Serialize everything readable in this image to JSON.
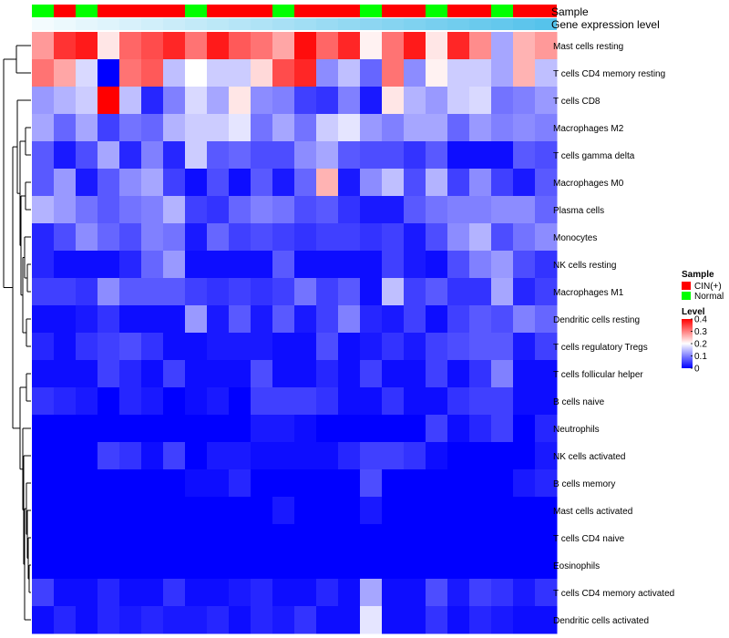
{
  "chart_data": {
    "type": "heatmap",
    "title": "",
    "rows": [
      "Mast cells resting",
      "T cells CD4 memory resting",
      "T cells CD8",
      "Macrophages M2",
      "T cells gamma delta",
      "Macrophages M0",
      "Plasma cells",
      "Monocytes",
      "NK cells resting",
      "Macrophages M1",
      "Dendritic cells resting",
      "T cells regulatory  Tregs",
      "T cells follicular helper",
      "B cells naive",
      "Neutrophils",
      "NK cells activated",
      "B cells memory",
      "Mast cells activated",
      "T cells CD4 naive",
      "Eosinophils",
      "T cells CD4 memory activated",
      "Dendritic cells activated"
    ],
    "columns": 24,
    "sample_annotation": [
      "Normal",
      "CIN(+)",
      "Normal",
      "CIN(+)",
      "CIN(+)",
      "CIN(+)",
      "CIN(+)",
      "Normal",
      "CIN(+)",
      "CIN(+)",
      "CIN(+)",
      "Normal",
      "CIN(+)",
      "CIN(+)",
      "CIN(+)",
      "Normal",
      "CIN(+)",
      "CIN(+)",
      "Normal",
      "CIN(+)",
      "CIN(+)",
      "Normal",
      "CIN(+)",
      "CIN(+)"
    ],
    "gene_expression_level": [
      0.02,
      0.04,
      0.06,
      0.08,
      0.1,
      0.12,
      0.14,
      0.16,
      0.18,
      0.2,
      0.22,
      0.24,
      0.26,
      0.28,
      0.3,
      0.32,
      0.34,
      0.36,
      0.38,
      0.4,
      0.42,
      0.44,
      0.46,
      0.48
    ],
    "values": [
      [
        0.28,
        0.36,
        0.38,
        0.22,
        0.32,
        0.34,
        0.37,
        0.31,
        0.38,
        0.33,
        0.31,
        0.27,
        0.39,
        0.32,
        0.37,
        0.21,
        0.31,
        0.38,
        0.22,
        0.37,
        0.29,
        0.13,
        0.26,
        0.28
      ],
      [
        0.31,
        0.27,
        0.17,
        0.0,
        0.31,
        0.33,
        0.15,
        0.2,
        0.16,
        0.16,
        0.23,
        0.34,
        0.37,
        0.11,
        0.15,
        0.08,
        0.31,
        0.11,
        0.21,
        0.16,
        0.16,
        0.13,
        0.26,
        0.15
      ],
      [
        0.12,
        0.14,
        0.16,
        0.4,
        0.15,
        0.03,
        0.1,
        0.17,
        0.13,
        0.22,
        0.11,
        0.1,
        0.05,
        0.04,
        0.1,
        0.02,
        0.22,
        0.14,
        0.12,
        0.16,
        0.17,
        0.09,
        0.1,
        0.12
      ],
      [
        0.13,
        0.08,
        0.13,
        0.05,
        0.09,
        0.08,
        0.14,
        0.16,
        0.16,
        0.18,
        0.09,
        0.13,
        0.09,
        0.16,
        0.18,
        0.12,
        0.1,
        0.13,
        0.13,
        0.08,
        0.12,
        0.1,
        0.11,
        0.1
      ],
      [
        0.07,
        0.02,
        0.06,
        0.13,
        0.03,
        0.1,
        0.03,
        0.16,
        0.07,
        0.08,
        0.06,
        0.06,
        0.11,
        0.13,
        0.07,
        0.06,
        0.06,
        0.04,
        0.07,
        0.01,
        0.01,
        0.01,
        0.07,
        0.06
      ],
      [
        0.07,
        0.12,
        0.02,
        0.07,
        0.11,
        0.13,
        0.05,
        0.01,
        0.06,
        0.01,
        0.07,
        0.02,
        0.08,
        0.26,
        0.02,
        0.11,
        0.15,
        0.06,
        0.14,
        0.05,
        0.11,
        0.05,
        0.02,
        0.07
      ],
      [
        0.14,
        0.12,
        0.09,
        0.07,
        0.09,
        0.1,
        0.14,
        0.05,
        0.04,
        0.08,
        0.1,
        0.09,
        0.06,
        0.07,
        0.04,
        0.02,
        0.02,
        0.07,
        0.09,
        0.1,
        0.1,
        0.11,
        0.11,
        0.08
      ],
      [
        0.03,
        0.06,
        0.11,
        0.08,
        0.06,
        0.1,
        0.09,
        0.02,
        0.08,
        0.05,
        0.06,
        0.05,
        0.04,
        0.05,
        0.05,
        0.04,
        0.05,
        0.02,
        0.06,
        0.11,
        0.14,
        0.06,
        0.09,
        0.11
      ],
      [
        0.03,
        0.01,
        0.01,
        0.01,
        0.03,
        0.08,
        0.12,
        0.01,
        0.01,
        0.01,
        0.01,
        0.07,
        0.01,
        0.01,
        0.01,
        0.01,
        0.05,
        0.02,
        0.01,
        0.06,
        0.1,
        0.12,
        0.06,
        0.04
      ],
      [
        0.05,
        0.05,
        0.04,
        0.11,
        0.07,
        0.07,
        0.07,
        0.05,
        0.04,
        0.05,
        0.04,
        0.05,
        0.09,
        0.05,
        0.07,
        0.01,
        0.15,
        0.05,
        0.07,
        0.04,
        0.04,
        0.13,
        0.03,
        0.05
      ],
      [
        0.01,
        0.01,
        0.02,
        0.04,
        0.01,
        0.01,
        0.01,
        0.12,
        0.02,
        0.07,
        0.02,
        0.07,
        0.02,
        0.05,
        0.1,
        0.03,
        0.02,
        0.05,
        0.01,
        0.05,
        0.07,
        0.06,
        0.1,
        0.08
      ],
      [
        0.03,
        0.01,
        0.04,
        0.05,
        0.06,
        0.04,
        0.01,
        0.01,
        0.02,
        0.02,
        0.02,
        0.01,
        0.01,
        0.06,
        0.01,
        0.02,
        0.04,
        0.02,
        0.05,
        0.06,
        0.07,
        0.07,
        0.02,
        0.05
      ],
      [
        0.01,
        0.01,
        0.01,
        0.05,
        0.03,
        0.01,
        0.05,
        0.01,
        0.01,
        0.01,
        0.06,
        0.01,
        0.01,
        0.03,
        0.01,
        0.05,
        0.01,
        0.01,
        0.05,
        0.01,
        0.04,
        0.1,
        0.01,
        0.01
      ],
      [
        0.04,
        0.03,
        0.02,
        0.0,
        0.03,
        0.02,
        0.0,
        0.01,
        0.02,
        0.0,
        0.05,
        0.05,
        0.05,
        0.04,
        0.01,
        0.01,
        0.04,
        0.01,
        0.01,
        0.04,
        0.05,
        0.05,
        0.01,
        0.01
      ],
      [
        0.0,
        0.0,
        0.0,
        0.0,
        0.0,
        0.0,
        0.0,
        0.0,
        0.0,
        0.0,
        0.02,
        0.02,
        0.01,
        0.0,
        0.0,
        0.0,
        0.0,
        0.0,
        0.05,
        0.01,
        0.03,
        0.05,
        0.0,
        0.03
      ],
      [
        0.0,
        0.0,
        0.0,
        0.05,
        0.04,
        0.01,
        0.05,
        0.0,
        0.02,
        0.02,
        0.01,
        0.01,
        0.01,
        0.01,
        0.03,
        0.05,
        0.05,
        0.04,
        0.01,
        0.0,
        0.0,
        0.0,
        0.0,
        0.02
      ],
      [
        0.0,
        0.0,
        0.0,
        0.0,
        0.0,
        0.0,
        0.0,
        0.01,
        0.01,
        0.03,
        0.0,
        0.0,
        0.0,
        0.0,
        0.0,
        0.06,
        0.0,
        0.0,
        0.0,
        0.0,
        0.0,
        0.0,
        0.02,
        0.03
      ],
      [
        0.0,
        0.0,
        0.0,
        0.0,
        0.0,
        0.0,
        0.0,
        0.0,
        0.0,
        0.0,
        0.0,
        0.02,
        0.0,
        0.0,
        0.0,
        0.02,
        0.0,
        0.0,
        0.0,
        0.0,
        0.0,
        0.0,
        0.0,
        0.0
      ],
      [
        0.0,
        0.0,
        0.0,
        0.0,
        0.0,
        0.0,
        0.0,
        0.0,
        0.0,
        0.0,
        0.0,
        0.0,
        0.0,
        0.0,
        0.0,
        0.0,
        0.0,
        0.0,
        0.0,
        0.0,
        0.0,
        0.0,
        0.0,
        0.0
      ],
      [
        0.0,
        0.0,
        0.0,
        0.0,
        0.0,
        0.0,
        0.0,
        0.0,
        0.0,
        0.0,
        0.0,
        0.0,
        0.0,
        0.0,
        0.0,
        0.0,
        0.0,
        0.0,
        0.0,
        0.0,
        0.0,
        0.0,
        0.0,
        0.0
      ],
      [
        0.05,
        0.01,
        0.01,
        0.03,
        0.01,
        0.01,
        0.04,
        0.01,
        0.01,
        0.02,
        0.03,
        0.01,
        0.01,
        0.03,
        0.01,
        0.13,
        0.01,
        0.01,
        0.06,
        0.02,
        0.05,
        0.04,
        0.02,
        0.04
      ],
      [
        0.01,
        0.03,
        0.01,
        0.03,
        0.02,
        0.03,
        0.02,
        0.02,
        0.03,
        0.01,
        0.03,
        0.02,
        0.04,
        0.01,
        0.01,
        0.18,
        0.01,
        0.01,
        0.04,
        0.01,
        0.03,
        0.02,
        0.01,
        0.01
      ]
    ],
    "track_labels": {
      "sample": "Sample",
      "gene": "Gene expression level"
    },
    "legend": {
      "sample_title": "Sample",
      "sample_items": [
        {
          "label": "CIN(+)",
          "color": "#ff0000"
        },
        {
          "label": "Normal",
          "color": "#00ff00"
        }
      ],
      "level_title": "Level",
      "level_ticks": [
        {
          "value": 0.4,
          "label": "0.4"
        },
        {
          "value": 0.3,
          "label": "0.3"
        },
        {
          "value": 0.2,
          "label": "0.2"
        },
        {
          "value": 0.1,
          "label": "0.1"
        },
        {
          "value": 0,
          "label": "0"
        }
      ]
    },
    "color_scale": {
      "low": "#0000ff",
      "mid": "#ffffff",
      "high": "#ff0000",
      "min": 0,
      "mid_value": 0.2,
      "max": 0.4
    },
    "gene_track_colors": {
      "low": "#f3fbfe",
      "high": "#56c3eb"
    },
    "dendrogram_side": "left"
  }
}
